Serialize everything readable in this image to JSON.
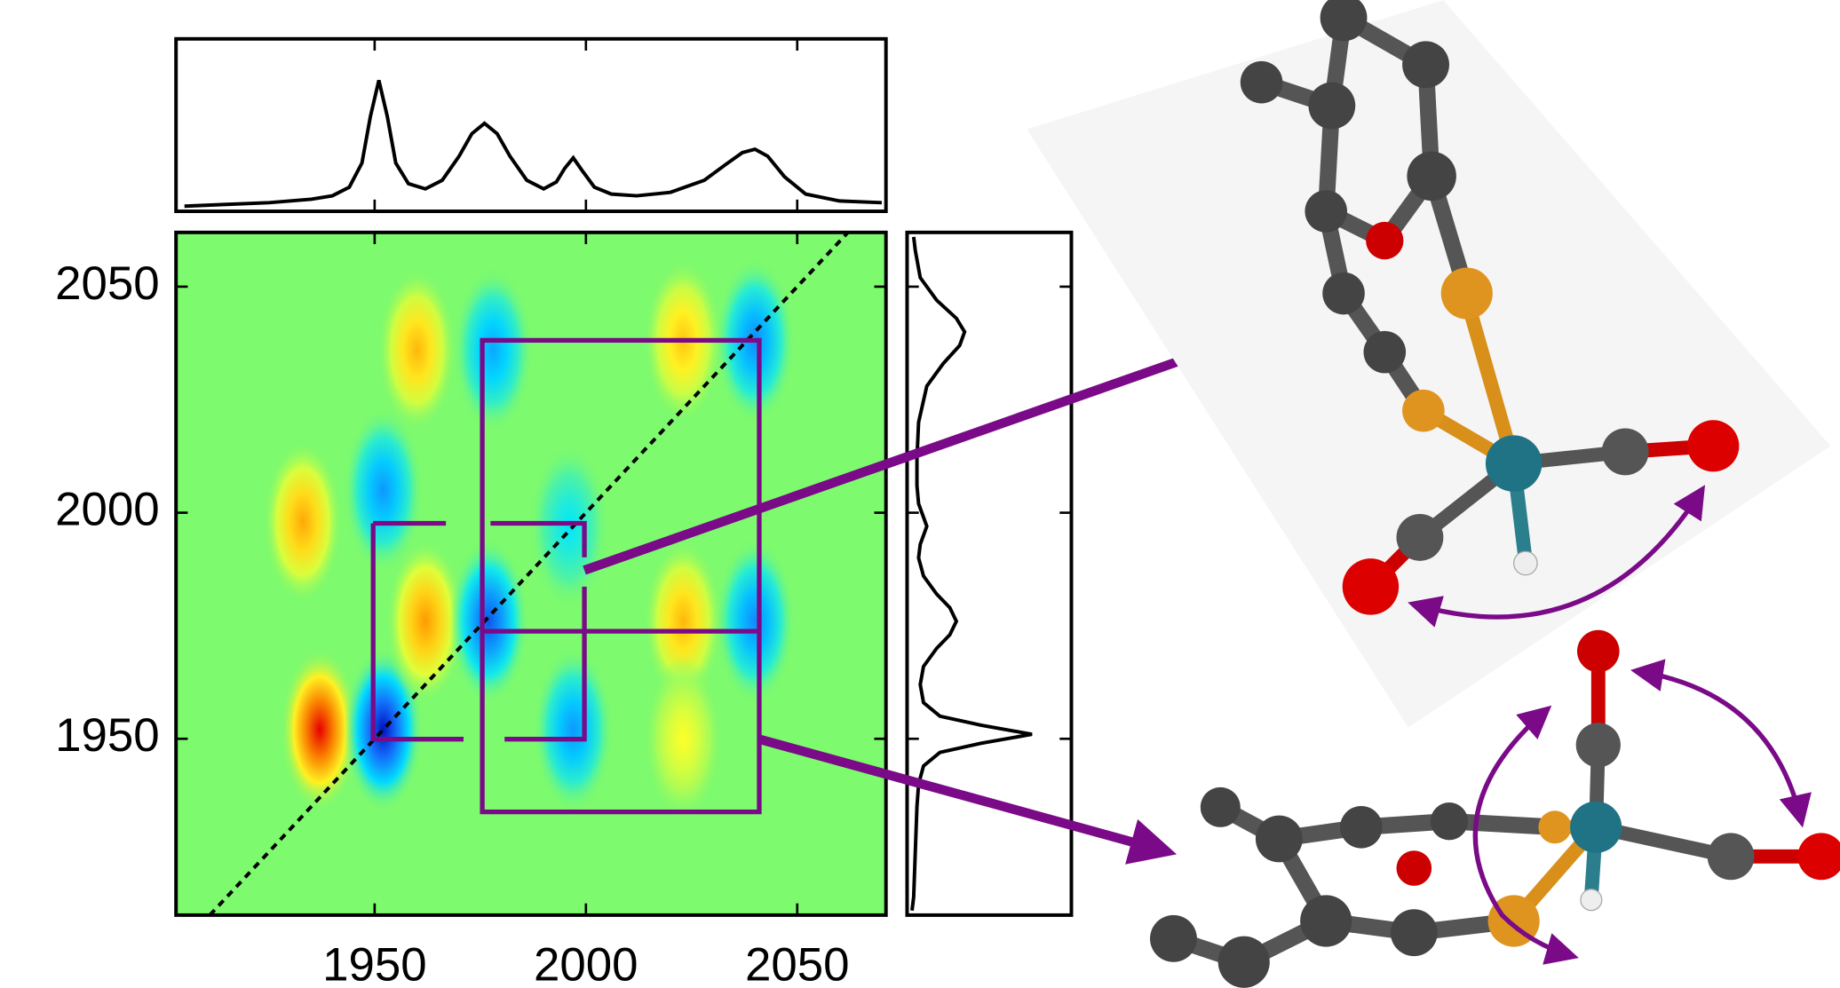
{
  "chart_data": [
    {
      "type": "heatmap",
      "xlim": [
        1903,
        2071
      ],
      "ylim": [
        1911,
        2062
      ],
      "xticks": [
        1950,
        2000,
        2050
      ],
      "yticks": [
        1950,
        2000,
        2050
      ],
      "tick_labels": true,
      "diagonal": true,
      "colorscale": [
        [
          -1,
          "#0000b4"
        ],
        [
          -0.65,
          "#1478ff"
        ],
        [
          -0.3,
          "#00e6ff"
        ],
        [
          0,
          "#7dfa6e"
        ],
        [
          0.3,
          "#ffff28"
        ],
        [
          0.65,
          "#ff9a00"
        ],
        [
          1,
          "#e60000"
        ]
      ],
      "peaks": [
        {
          "x": 1937,
          "y": 1952,
          "amplitude": 1.0
        },
        {
          "x": 1952,
          "y": 1952,
          "amplitude": -0.95
        },
        {
          "x": 1960,
          "y": 2036,
          "amplitude": 0.55
        },
        {
          "x": 1933,
          "y": 1998,
          "amplitude": 0.6
        },
        {
          "x": 1952,
          "y": 2005,
          "amplitude": -0.55
        },
        {
          "x": 1962,
          "y": 1976,
          "amplitude": 0.65
        },
        {
          "x": 1977,
          "y": 1976,
          "amplitude": -0.75
        },
        {
          "x": 1978,
          "y": 2036,
          "amplitude": -0.5
        },
        {
          "x": 1997,
          "y": 1952,
          "amplitude": -0.55
        },
        {
          "x": 2023,
          "y": 1976,
          "amplitude": 0.55
        },
        {
          "x": 2023,
          "y": 2038,
          "amplitude": 0.5
        },
        {
          "x": 2040,
          "y": 2038,
          "amplitude": -0.6
        },
        {
          "x": 2040,
          "y": 1976,
          "amplitude": -0.6
        },
        {
          "x": 2023,
          "y": 1950,
          "amplitude": 0.3
        },
        {
          "x": 1996,
          "y": 1997,
          "amplitude": -0.3
        }
      ]
    },
    {
      "type": "line",
      "orientation": "horizontal",
      "color": "#000000",
      "xlim": [
        1903,
        2071
      ],
      "ylim": [
        0,
        1
      ],
      "xticks": [
        1950,
        2000,
        2050
      ],
      "tick_labels": false,
      "x": [
        1905,
        1915,
        1925,
        1935,
        1940,
        1944,
        1947,
        1949,
        1951,
        1953,
        1955,
        1958,
        1962,
        1966,
        1970,
        1973,
        1976,
        1979,
        1982,
        1986,
        1990,
        1993,
        1995,
        1997,
        1999,
        2002,
        2006,
        2012,
        2020,
        2028,
        2033,
        2037,
        2040,
        2043,
        2047,
        2052,
        2060,
        2070
      ],
      "values": [
        0.03,
        0.04,
        0.05,
        0.07,
        0.09,
        0.14,
        0.28,
        0.55,
        0.76,
        0.55,
        0.28,
        0.16,
        0.13,
        0.18,
        0.32,
        0.45,
        0.51,
        0.45,
        0.32,
        0.18,
        0.13,
        0.17,
        0.25,
        0.31,
        0.24,
        0.14,
        0.1,
        0.09,
        0.11,
        0.18,
        0.27,
        0.34,
        0.36,
        0.32,
        0.2,
        0.1,
        0.06,
        0.05
      ]
    },
    {
      "type": "line",
      "orientation": "vertical",
      "color": "#000000",
      "xlim": [
        0,
        1
      ],
      "ylim": [
        1911,
        2062
      ],
      "yticks": [
        1950,
        2000,
        2050
      ],
      "tick_labels": false,
      "y": [
        1912,
        1915,
        1925,
        1935,
        1940,
        1944,
        1947,
        1949,
        1951,
        1953,
        1955,
        1958,
        1962,
        1966,
        1970,
        1973,
        1976,
        1979,
        1982,
        1986,
        1990,
        1993,
        1995,
        1997,
        1999,
        2002,
        2006,
        2012,
        2020,
        2028,
        2033,
        2037,
        2040,
        2043,
        2047,
        2052,
        2058,
        2061
      ],
      "values": [
        0.03,
        0.04,
        0.05,
        0.06,
        0.07,
        0.1,
        0.2,
        0.45,
        0.76,
        0.45,
        0.2,
        0.1,
        0.08,
        0.1,
        0.18,
        0.26,
        0.3,
        0.26,
        0.18,
        0.1,
        0.07,
        0.08,
        0.1,
        0.12,
        0.1,
        0.07,
        0.06,
        0.06,
        0.07,
        0.12,
        0.22,
        0.32,
        0.35,
        0.3,
        0.18,
        0.08,
        0.05,
        0.04
      ]
    }
  ]
}
